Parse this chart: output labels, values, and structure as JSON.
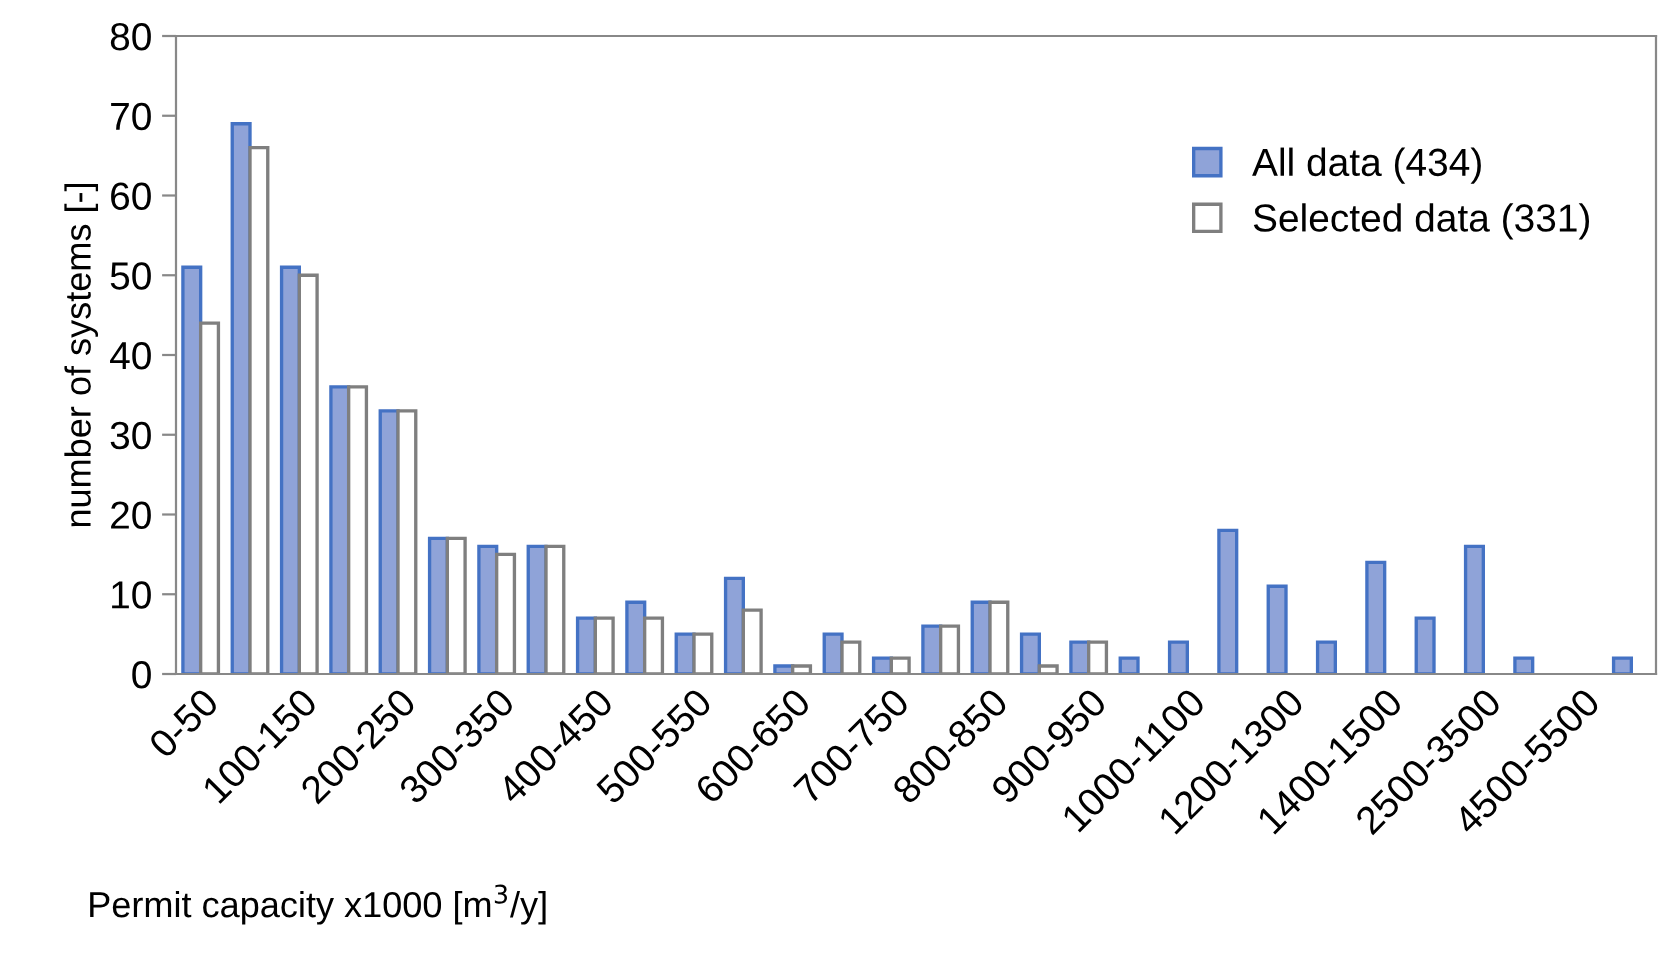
{
  "chart_data": {
    "type": "bar",
    "xlabel": "Permit capacity x1000 [m$^{3}$/y]",
    "ylabel": "number of systems [-]",
    "categories": [
      "0-50",
      null,
      "100-150",
      null,
      "200-250",
      null,
      "300-350",
      null,
      "400-450",
      null,
      "500-550",
      null,
      "600-650",
      null,
      "700-750",
      null,
      "800-850",
      null,
      "900-950",
      null,
      "1000-1100",
      null,
      "1200-1300",
      null,
      "1400-1500",
      null,
      "2500-3500",
      null,
      "4500-5500",
      null
    ],
    "series": [
      {
        "name": "All data (434)",
        "color": "#8fa3d8",
        "values": [
          51,
          69,
          51,
          36,
          33,
          17,
          16,
          16,
          7,
          9,
          5,
          12,
          1,
          5,
          2,
          6,
          9,
          5,
          4,
          2,
          4,
          18,
          11,
          4,
          14,
          7,
          16,
          2,
          null,
          2
        ]
      },
      {
        "name": "Selected data (331)",
        "color": "#ffffff",
        "values": [
          44,
          66,
          50,
          36,
          33,
          17,
          15,
          16,
          7,
          7,
          5,
          8,
          1,
          4,
          2,
          6,
          9,
          1,
          4,
          null,
          null,
          null,
          null,
          null,
          null,
          null,
          null,
          null,
          null,
          null
        ]
      }
    ],
    "ylim": [
      0,
      80
    ],
    "yticks": [
      0,
      10,
      20,
      30,
      40,
      50,
      60,
      70,
      80
    ],
    "grid": false,
    "legend": "top right"
  }
}
